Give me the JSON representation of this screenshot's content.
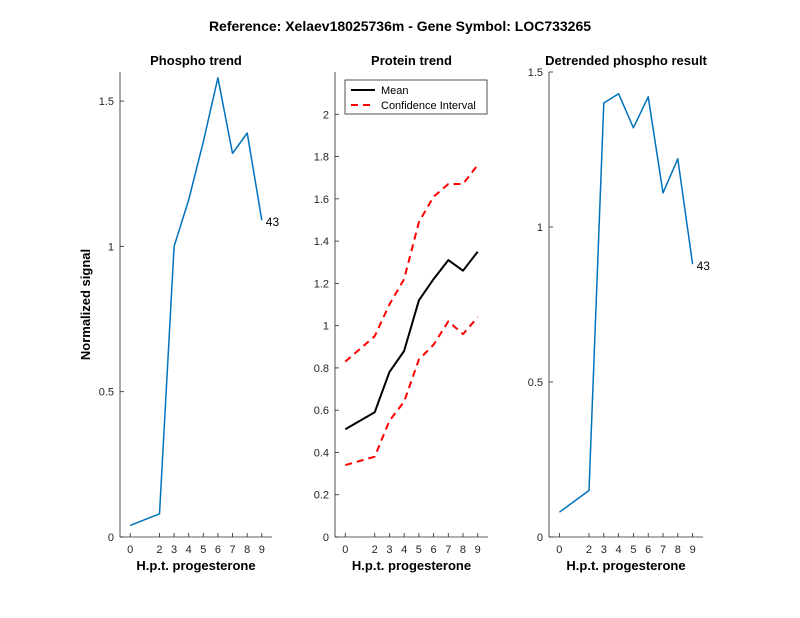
{
  "figure": {
    "title": "Reference:  Xelaev18025736m - Gene Symbol:  LOC733265"
  },
  "chart_data": [
    {
      "type": "line",
      "title": "Phospho trend",
      "xlabel": "H.p.t. progesterone",
      "ylabel": "Normalized signal",
      "x": [
        0,
        2,
        3,
        4,
        5,
        6,
        7,
        8,
        9
      ],
      "xticks": [
        "0",
        "2",
        "3",
        "4",
        "5",
        "6",
        "7",
        "8",
        "9"
      ],
      "ylim": [
        0,
        1.6
      ],
      "yticks": [
        0,
        0.5,
        1,
        1.5
      ],
      "ytick_labels": [
        "0",
        "0.5",
        "1",
        "1.5"
      ],
      "grid": false,
      "series": [
        {
          "values": [
            0.04,
            0.08,
            1.0,
            1.16,
            1.36,
            1.58,
            1.32,
            1.39,
            1.09
          ],
          "color": "#0072BD",
          "dash": "solid"
        }
      ],
      "annotations": [
        {
          "text": "43",
          "x": 9,
          "y": 1.09
        }
      ]
    },
    {
      "type": "line",
      "title": "Protein trend",
      "xlabel": "H.p.t. progesterone",
      "ylabel": "",
      "x": [
        0,
        2,
        3,
        4,
        5,
        6,
        7,
        8,
        9
      ],
      "xticks": [
        "0",
        "2",
        "3",
        "4",
        "5",
        "6",
        "7",
        "8",
        "9"
      ],
      "ylim": [
        0,
        2.2
      ],
      "yticks": [
        0,
        0.2,
        0.4,
        0.6,
        0.8,
        1,
        1.2,
        1.4,
        1.6,
        1.8,
        2
      ],
      "ytick_labels": [
        "0",
        "0.2",
        "0.4",
        "0.6",
        "0.8",
        "1",
        "1.2",
        "1.4",
        "1.6",
        "1.8",
        "2"
      ],
      "grid": false,
      "legend": {
        "position": "top-left",
        "entries": [
          "Mean",
          "Confidence Interval"
        ]
      },
      "series": [
        {
          "name": "Mean",
          "values": [
            0.51,
            0.59,
            0.78,
            0.88,
            1.12,
            1.22,
            1.31,
            1.26,
            1.35
          ],
          "color": "#000000",
          "dash": "solid"
        },
        {
          "name": "Confidence Interval",
          "values": [
            0.83,
            0.95,
            1.1,
            1.22,
            1.49,
            1.61,
            1.67,
            1.67,
            1.76
          ],
          "color": "#FF0000",
          "dash": "dashed"
        },
        {
          "values": [
            0.34,
            0.38,
            0.55,
            0.64,
            0.84,
            0.91,
            1.02,
            0.96,
            1.04
          ],
          "color": "#FF0000",
          "dash": "dashed"
        }
      ],
      "annotations": []
    },
    {
      "type": "line",
      "title": "Detrended phospho result",
      "xlabel": "H.p.t. progesterone",
      "ylabel": "",
      "x": [
        0,
        2,
        3,
        4,
        5,
        6,
        7,
        8,
        9
      ],
      "xticks": [
        "0",
        "2",
        "3",
        "4",
        "5",
        "6",
        "7",
        "8",
        "9"
      ],
      "ylim": [
        0,
        1.5
      ],
      "yticks": [
        0,
        0.5,
        1,
        1.5
      ],
      "ytick_labels": [
        "0",
        "0.5",
        "1",
        "1.5"
      ],
      "grid": false,
      "series": [
        {
          "values": [
            0.08,
            0.15,
            1.4,
            1.43,
            1.32,
            1.42,
            1.11,
            1.22,
            0.88
          ],
          "color": "#0072BD",
          "dash": "solid"
        }
      ],
      "annotations": [
        {
          "text": "43",
          "x": 9,
          "y": 0.88
        }
      ]
    }
  ]
}
